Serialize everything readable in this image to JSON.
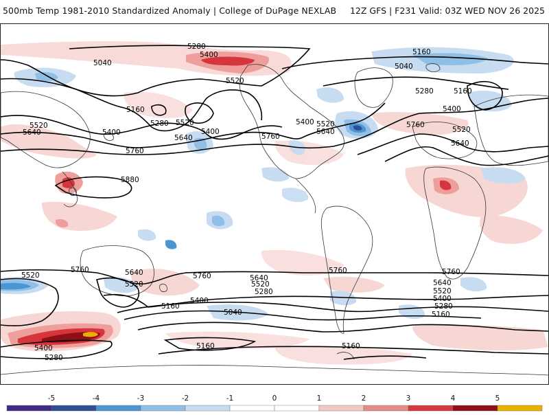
{
  "header": {
    "title": "500mb Temp 1981-2010 Standardized Anomaly | College of DuPage NEXLAB",
    "run_info": "12Z GFS | F231 Valid: 03Z WED NOV 26 2025"
  },
  "map": {
    "contour_labels": [
      {
        "id": "c5280-npac",
        "text": "5280"
      },
      {
        "id": "c5400-npac",
        "text": "5400"
      },
      {
        "id": "c5040-w",
        "text": "5040"
      },
      {
        "id": "c5520-npac",
        "text": "5520"
      },
      {
        "id": "c5160-npac",
        "text": "5160"
      },
      {
        "id": "c5280-npac2",
        "text": "5280"
      },
      {
        "id": "c5520-npac2",
        "text": "5520"
      },
      {
        "id": "c5400-npac2",
        "text": "5400"
      },
      {
        "id": "c5520-asia",
        "text": "5520"
      },
      {
        "id": "c5640-asia",
        "text": "5640"
      },
      {
        "id": "c5400-asia",
        "text": "5400"
      },
      {
        "id": "c5640-npac",
        "text": "5640"
      },
      {
        "id": "c5760-pac",
        "text": "5760"
      },
      {
        "id": "c5880-pac",
        "text": "5880"
      },
      {
        "id": "c5760-na",
        "text": "5760"
      },
      {
        "id": "c5400-na",
        "text": "5400"
      },
      {
        "id": "c5520-na",
        "text": "5520"
      },
      {
        "id": "c5640-na",
        "text": "5640"
      },
      {
        "id": "c5160-arc",
        "text": "5160"
      },
      {
        "id": "c5040-arc",
        "text": "5040"
      },
      {
        "id": "c5280-eu",
        "text": "5280"
      },
      {
        "id": "c5160-eu",
        "text": "5160"
      },
      {
        "id": "c5400-eu",
        "text": "5400"
      },
      {
        "id": "c5760-atl",
        "text": "5760"
      },
      {
        "id": "c5520-eu",
        "text": "5520"
      },
      {
        "id": "c5640-eu",
        "text": "5640"
      },
      {
        "id": "c5520-sio",
        "text": "5520"
      },
      {
        "id": "c5760-saus",
        "text": "5760"
      },
      {
        "id": "c5640-saus",
        "text": "5640"
      },
      {
        "id": "c5520-saus",
        "text": "5520"
      },
      {
        "id": "c5760-spac",
        "text": "5760"
      },
      {
        "id": "c5640-spac",
        "text": "5640"
      },
      {
        "id": "c5520-spac",
        "text": "5520"
      },
      {
        "id": "c5280-spac",
        "text": "5280"
      },
      {
        "id": "c5400-spac",
        "text": "5400"
      },
      {
        "id": "c5160-spac",
        "text": "5160"
      },
      {
        "id": "c5040-spac",
        "text": "5040"
      },
      {
        "id": "c5760-sam",
        "text": "5760"
      },
      {
        "id": "c5760-satl",
        "text": "5760"
      },
      {
        "id": "c5640-satl",
        "text": "5640"
      },
      {
        "id": "c5520-satl",
        "text": "5520"
      },
      {
        "id": "c5400-satl",
        "text": "5400"
      },
      {
        "id": "c5280-satl",
        "text": "5280"
      },
      {
        "id": "c5160-satl",
        "text": "5160"
      },
      {
        "id": "c5160-ant",
        "text": "5160"
      },
      {
        "id": "c5160-ant2",
        "text": "5160"
      },
      {
        "id": "c5400-ant",
        "text": "5400"
      },
      {
        "id": "c5280-ant",
        "text": "5280"
      }
    ]
  },
  "colorbar": {
    "labels": [
      "-5",
      "-4",
      "-3",
      "-2",
      "-1",
      "0",
      "1",
      "2",
      "3",
      "4",
      "5"
    ],
    "colors": [
      "#3f2a86",
      "#2f4f94",
      "#4b96d2",
      "#8fbfe6",
      "#c7dcf1",
      "#ffffff",
      "#ffffff",
      "#f2c8c4",
      "#e58c8a",
      "#d23a3e",
      "#8e0f16",
      "#e8b000"
    ]
  }
}
